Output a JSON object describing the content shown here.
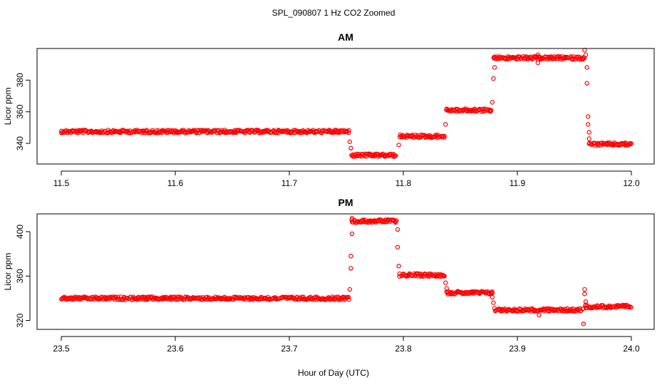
{
  "figure": {
    "title": "SPL_090807  1 Hz CO2 Zoomed",
    "xlabel": "Hour of Day (UTC)"
  },
  "chart_data": [
    {
      "type": "scatter",
      "title": "AM",
      "xlabel": "",
      "ylabel": "Licor ppm",
      "marker_color": "#ff0000",
      "xlim": [
        11.5,
        12.0
      ],
      "ylim": [
        327,
        400
      ],
      "xticks": [
        "11.5",
        "11.6",
        "11.7",
        "11.8",
        "11.9",
        "12.0"
      ],
      "yticks": [
        "340",
        "360",
        "380"
      ],
      "segments": [
        {
          "x": [
            11.5,
            11.752
          ],
          "y": 347.5
        },
        {
          "x": [
            11.755,
            11.793
          ],
          "y": 332.5
        },
        {
          "x": [
            11.797,
            11.836
          ],
          "y": 344.5
        },
        {
          "x": [
            11.838,
            11.877
          ],
          "y": 361.0
        },
        {
          "x": [
            11.879,
            11.959
          ],
          "y": 394.0
        },
        {
          "x": [
            11.963,
            12.0
          ],
          "y": 339.5
        }
      ],
      "transition_points": [
        [
          11.753,
          341
        ],
        [
          11.754,
          337
        ],
        [
          11.796,
          339
        ],
        [
          11.837,
          352
        ],
        [
          11.878,
          366
        ],
        [
          11.879,
          381
        ],
        [
          11.88,
          388
        ],
        [
          11.918,
          396
        ],
        [
          11.918,
          391
        ],
        [
          11.959,
          399
        ],
        [
          11.96,
          396
        ],
        [
          11.961,
          388
        ],
        [
          11.961,
          378
        ],
        [
          11.962,
          357
        ],
        [
          11.962,
          352
        ],
        [
          11.963,
          347
        ],
        [
          11.963,
          343
        ]
      ]
    },
    {
      "type": "scatter",
      "title": "PM",
      "xlabel": "",
      "ylabel": "Licor ppm",
      "marker_color": "#ff0000",
      "xlim": [
        23.5,
        24.0
      ],
      "ylim": [
        312,
        416
      ],
      "xticks": [
        "23.5",
        "23.6",
        "23.7",
        "23.8",
        "23.9",
        "24.0"
      ],
      "yticks": [
        "320",
        "360",
        "400"
      ],
      "segments": [
        {
          "x": [
            23.5,
            23.752
          ],
          "y": 340.0
        },
        {
          "x": [
            23.755,
            23.794
          ],
          "y": 409.5
        },
        {
          "x": [
            23.797,
            23.836
          ],
          "y": 361.0
        },
        {
          "x": [
            23.838,
            23.878
          ],
          "y": 345.0
        },
        {
          "x": [
            23.881,
            23.957
          ],
          "y": 329.5
        },
        {
          "x": [
            23.96,
            24.0
          ],
          "y": 332.5
        }
      ],
      "transition_points": [
        [
          23.753,
          348
        ],
        [
          23.754,
          367
        ],
        [
          23.754,
          378
        ],
        [
          23.755,
          398
        ],
        [
          23.755,
          412
        ],
        [
          23.795,
          402
        ],
        [
          23.795,
          386
        ],
        [
          23.796,
          369
        ],
        [
          23.837,
          354
        ],
        [
          23.838,
          349
        ],
        [
          23.878,
          341
        ],
        [
          23.879,
          336
        ],
        [
          23.88,
          331
        ],
        [
          23.919,
          325
        ],
        [
          23.958,
          317
        ],
        [
          23.959,
          348
        ],
        [
          23.959,
          344
        ],
        [
          23.96,
          337
        ],
        [
          23.96,
          334
        ]
      ]
    }
  ]
}
